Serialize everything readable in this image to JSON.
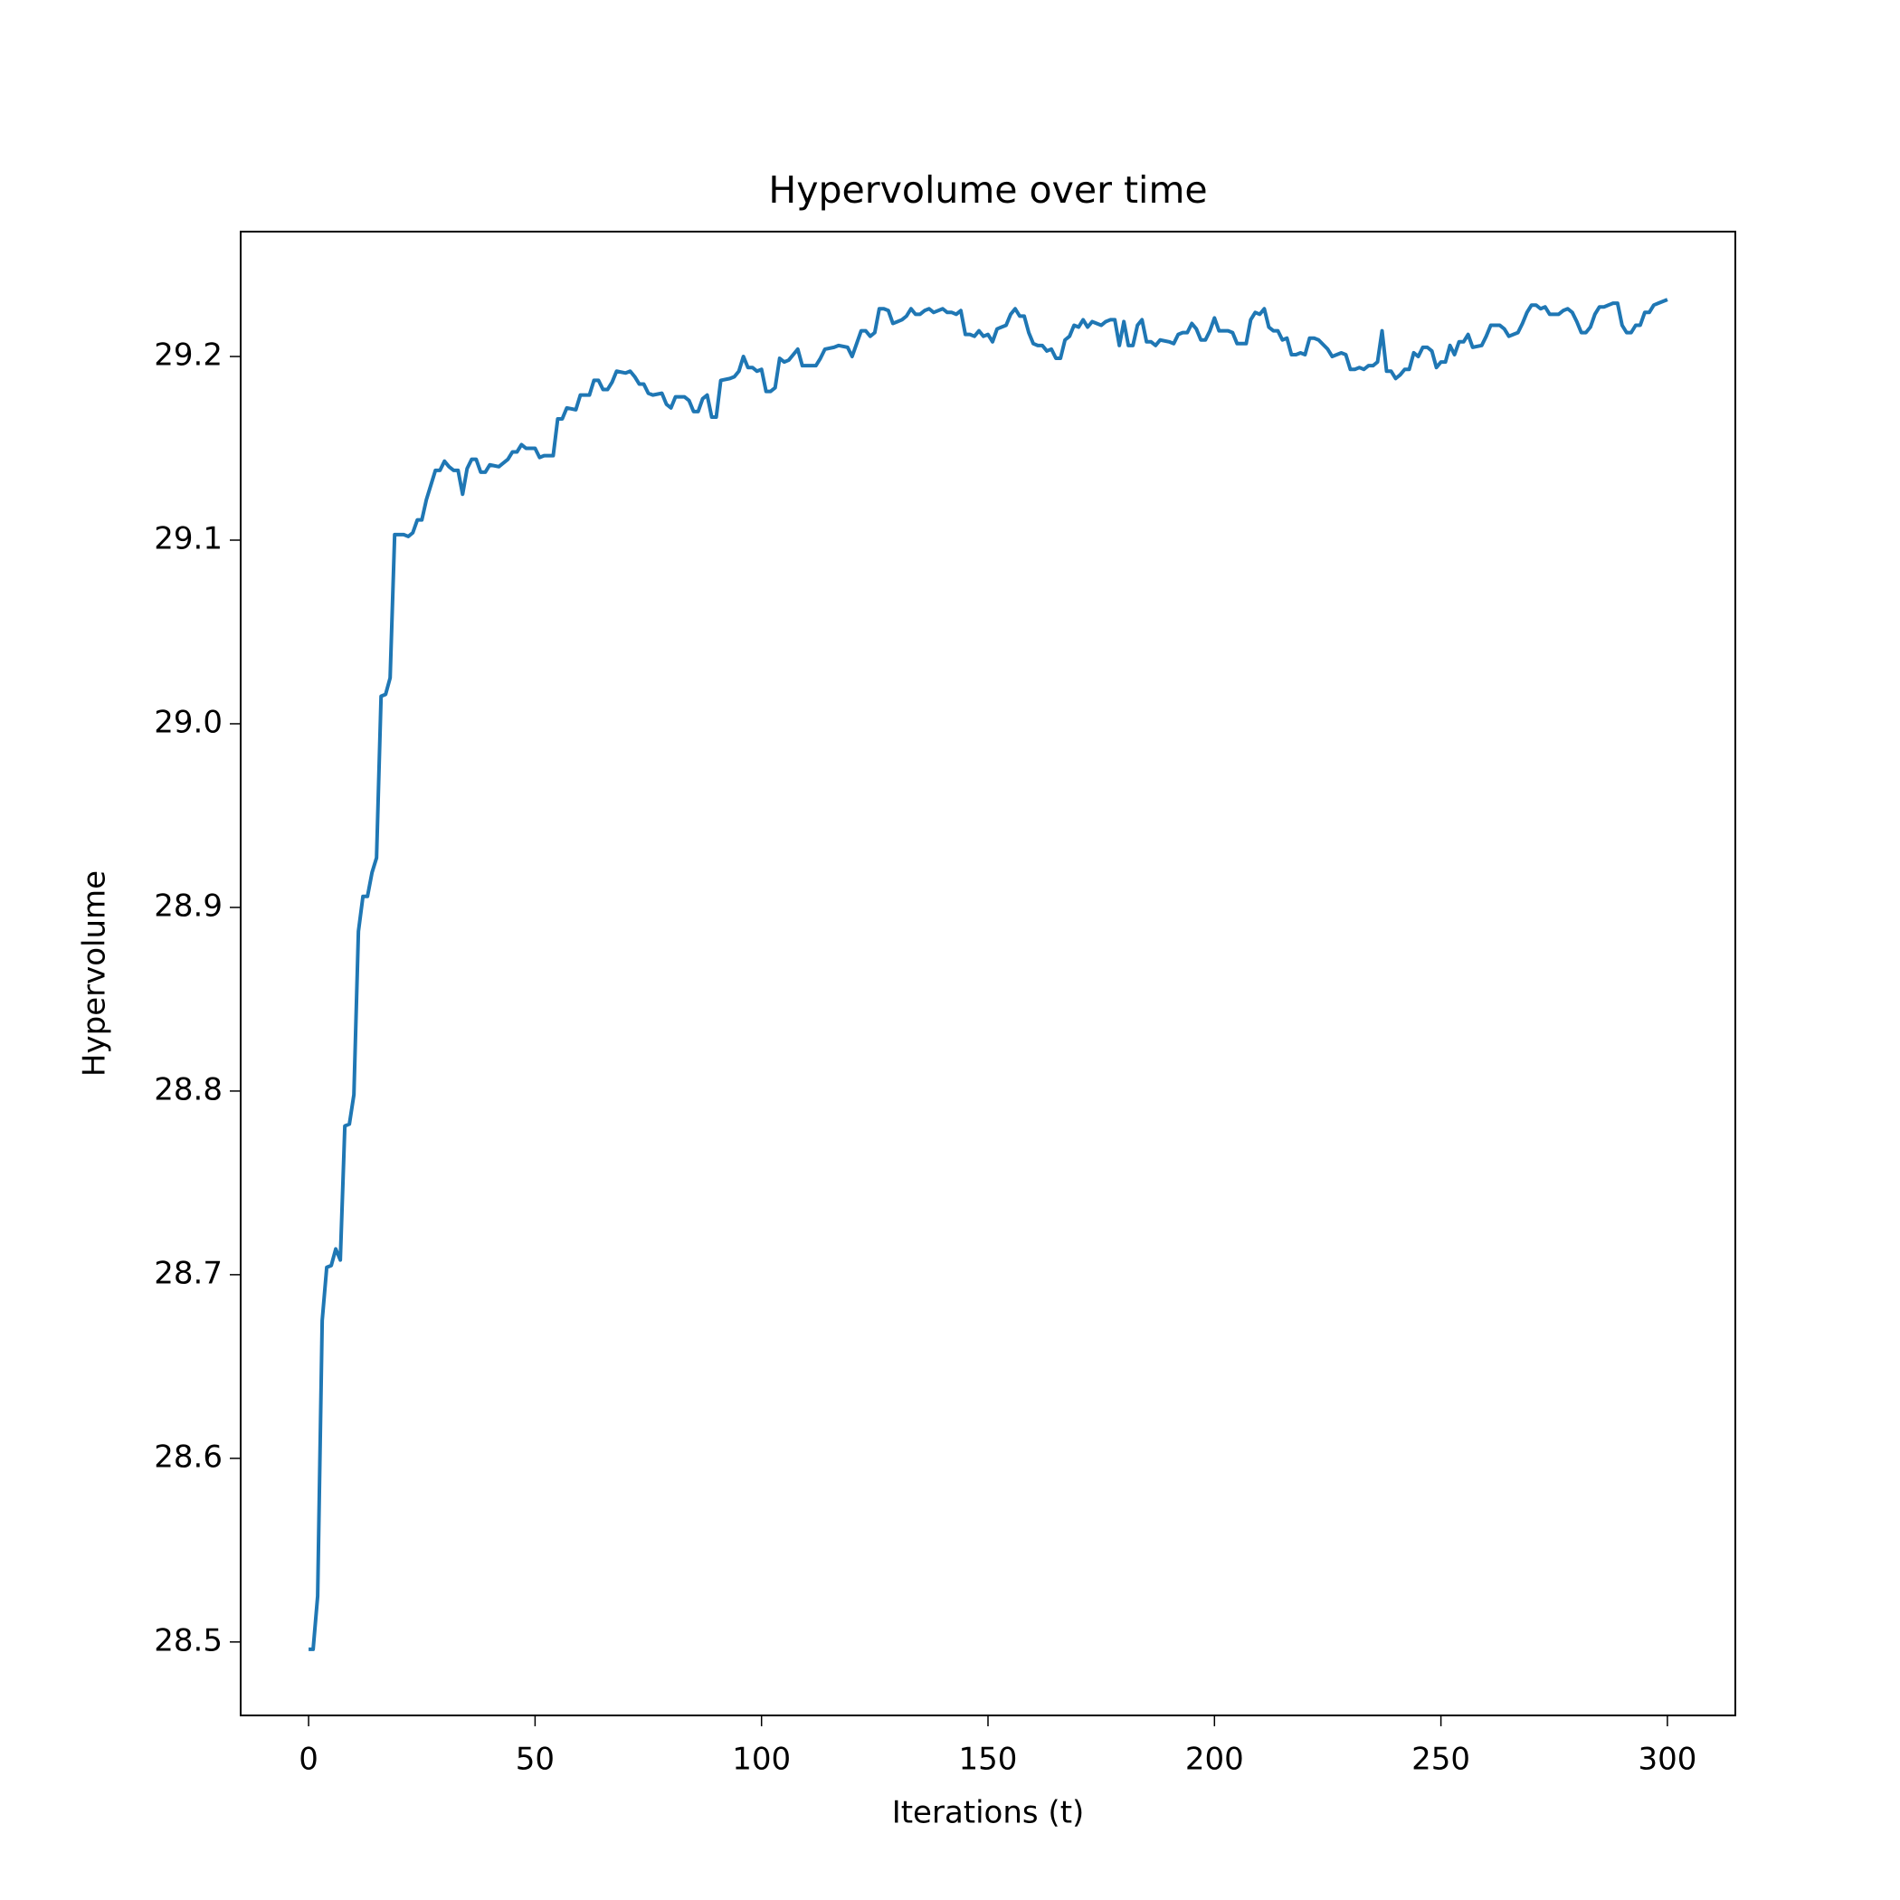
{
  "chart_data": {
    "type": "line",
    "title": "Hypervolume over time",
    "x_label": "Iterations (t)",
    "y_label": "Hypervolume",
    "color": "#1f77b4",
    "grid": false,
    "xlim": [
      -15,
      315
    ],
    "xticks": [
      0,
      50,
      100,
      150,
      200,
      250,
      300
    ],
    "ylim": [
      28.46,
      29.268
    ],
    "yticks": [
      28.5,
      28.6,
      28.7,
      28.8,
      28.9,
      {
        "value": 29,
        "label": "29.0"
      },
      29.1,
      29.2
    ],
    "x": [
      0,
      1,
      2,
      3,
      4,
      5,
      6,
      7,
      8,
      9,
      10,
      11,
      12,
      13,
      14,
      15,
      16,
      17,
      18,
      19,
      20,
      21,
      22,
      23,
      24,
      25,
      26,
      27,
      28,
      29,
      30,
      31,
      32,
      33,
      34,
      35,
      36,
      37,
      38,
      39,
      40,
      42,
      44,
      45,
      46,
      47,
      48,
      50,
      51,
      52,
      54,
      55,
      56,
      57,
      59,
      60,
      62,
      63,
      64,
      65,
      66,
      67,
      68,
      70,
      71,
      72,
      73,
      74,
      75,
      76,
      78,
      79,
      80,
      81,
      83,
      84,
      85,
      86,
      87,
      88,
      89,
      90,
      91,
      93,
      94,
      95,
      96,
      97,
      98,
      99,
      100,
      101,
      102,
      103,
      104,
      105,
      106,
      107,
      108,
      109,
      111,
      112,
      113,
      114,
      116,
      117,
      119,
      120,
      121,
      122,
      123,
      124,
      125,
      126,
      127,
      128,
      129,
      130,
      131,
      132,
      133,
      134,
      135,
      136,
      137,
      138,
      140,
      141,
      142,
      143,
      144,
      145,
      146,
      147,
      148,
      149,
      150,
      151,
      152,
      153,
      154,
      155,
      156,
      157,
      158,
      159,
      160,
      161,
      162,
      163,
      164,
      165,
      166,
      167,
      168,
      169,
      170,
      171,
      172,
      173,
      174,
      175,
      176,
      177,
      178,
      179,
      180,
      181,
      182,
      183,
      184,
      185,
      186,
      187,
      188,
      190,
      191,
      192,
      193,
      194,
      195,
      196,
      197,
      198,
      199,
      200,
      201,
      203,
      204,
      205,
      207,
      208,
      209,
      210,
      211,
      212,
      213,
      214,
      215,
      216,
      217,
      218,
      219,
      220,
      221,
      222,
      223,
      225,
      226,
      227,
      228,
      229,
      230,
      231,
      232,
      233,
      234,
      235,
      236,
      237,
      238,
      239,
      240,
      241,
      242,
      243,
      244,
      245,
      246,
      247,
      248,
      249,
      250,
      251,
      252,
      253,
      254,
      255,
      256,
      257,
      259,
      260,
      261,
      263,
      264,
      265,
      266,
      267,
      268,
      269,
      270,
      271,
      272,
      273,
      274,
      276,
      277,
      278,
      279,
      280,
      281,
      282,
      283,
      284,
      285,
      286,
      288,
      289,
      290,
      291,
      292,
      293,
      294,
      295,
      296,
      297,
      298,
      299,
      300
    ],
    "values": [
      28.496,
      28.496,
      28.525,
      28.675,
      28.704,
      28.705,
      28.714,
      28.708,
      28.781,
      28.782,
      28.798,
      28.887,
      28.906,
      28.906,
      28.919,
      28.927,
      29.015,
      29.016,
      29.025,
      29.103,
      29.103,
      29.103,
      29.102,
      29.104,
      29.111,
      29.111,
      29.122,
      29.13,
      29.138,
      29.138,
      29.143,
      29.14,
      29.138,
      29.138,
      29.125,
      29.139,
      29.144,
      29.144,
      29.137,
      29.137,
      29.141,
      29.14,
      29.144,
      29.148,
      29.148,
      29.152,
      29.15,
      29.15,
      29.145,
      29.146,
      29.146,
      29.166,
      29.166,
      29.172,
      29.171,
      29.179,
      29.179,
      29.187,
      29.187,
      29.182,
      29.182,
      29.186,
      29.192,
      29.191,
      29.192,
      29.189,
      29.185,
      29.185,
      29.18,
      29.179,
      29.18,
      29.174,
      29.172,
      29.178,
      29.178,
      29.176,
      29.17,
      29.17,
      29.177,
      29.179,
      29.167,
      29.167,
      29.187,
      29.188,
      29.189,
      29.192,
      29.2,
      29.194,
      29.194,
      29.192,
      29.193,
      29.181,
      29.181,
      29.183,
      29.199,
      29.197,
      29.198,
      29.201,
      29.204,
      29.195,
      29.195,
      29.195,
      29.199,
      29.204,
      29.205,
      29.206,
      29.205,
      29.2,
      29.207,
      29.214,
      29.214,
      29.211,
      29.213,
      29.226,
      29.226,
      29.225,
      29.218,
      29.219,
      29.22,
      29.222,
      29.226,
      29.223,
      29.223,
      29.225,
      29.226,
      29.224,
      29.226,
      29.224,
      29.224,
      29.223,
      29.225,
      29.212,
      29.212,
      29.211,
      29.214,
      29.211,
      29.212,
      29.208,
      29.215,
      29.216,
      29.217,
      29.223,
      29.226,
      29.222,
      29.222,
      29.213,
      29.207,
      29.206,
      29.206,
      29.203,
      29.204,
      29.199,
      29.199,
      29.209,
      29.211,
      29.217,
      29.216,
      29.22,
      29.216,
      29.219,
      29.218,
      29.217,
      29.219,
      29.22,
      29.22,
      29.206,
      29.219,
      29.206,
      29.206,
      29.217,
      29.22,
      29.208,
      29.208,
      29.206,
      29.209,
      29.208,
      29.207,
      29.212,
      29.213,
      29.213,
      29.218,
      29.215,
      29.209,
      29.209,
      29.214,
      29.221,
      29.214,
      29.214,
      29.213,
      29.207,
      29.207,
      29.22,
      29.224,
      29.223,
      29.226,
      29.216,
      29.214,
      29.214,
      29.209,
      29.21,
      29.201,
      29.201,
      29.202,
      29.201,
      29.21,
      29.21,
      29.209,
      29.204,
      29.2,
      29.201,
      29.202,
      29.201,
      29.193,
      29.193,
      29.194,
      29.193,
      29.195,
      29.195,
      29.197,
      29.214,
      29.192,
      29.192,
      29.188,
      29.19,
      29.193,
      29.193,
      29.202,
      29.2,
      29.205,
      29.205,
      29.203,
      29.194,
      29.197,
      29.197,
      29.206,
      29.201,
      29.208,
      29.208,
      29.212,
      29.205,
      29.206,
      29.211,
      29.217,
      29.217,
      29.215,
      29.211,
      29.212,
      29.213,
      29.218,
      29.224,
      29.228,
      29.228,
      29.226,
      29.227,
      29.223,
      29.223,
      29.225,
      29.226,
      29.224,
      29.219,
      29.213,
      29.213,
      29.216,
      29.223,
      29.227,
      29.227,
      29.229,
      29.229,
      29.217,
      29.213,
      29.213,
      29.217,
      29.217,
      29.224,
      29.224,
      29.228,
      29.229,
      29.23,
      29.231
    ]
  }
}
